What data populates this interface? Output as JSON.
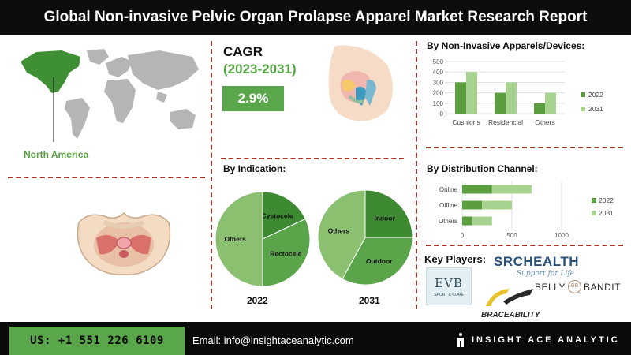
{
  "header": {
    "title": "Global Non-invasive Pelvic Organ Prolapse Apparel Market Research Report"
  },
  "region": {
    "label": "North America"
  },
  "cagr": {
    "title": "CAGR",
    "period": "(2023-2031)",
    "value": "2.9%"
  },
  "colors": {
    "accent_green": "#5aa64a",
    "series_2022": "#5a9e3f",
    "series_2031": "#a7d391",
    "divider": "#a3392b",
    "dark": "#0d0d0d"
  },
  "chart_data": [
    {
      "type": "bar",
      "title": "By Non-Invasive Apparels/Devices:",
      "categories": [
        "Cushions",
        "Residencial",
        "Others"
      ],
      "series": [
        {
          "name": "2022",
          "values": [
            300,
            200,
            100
          ]
        },
        {
          "name": "2031",
          "values": [
            400,
            300,
            200
          ]
        }
      ],
      "ylim": [
        0,
        500
      ],
      "yticks": [
        0,
        100,
        200,
        300,
        400,
        500
      ],
      "grid": true,
      "legend": "right"
    },
    {
      "type": "bar",
      "orientation": "horizontal",
      "stacked": true,
      "title": "By  Distribution Channel:",
      "categories": [
        "Online",
        "Offline",
        "Others"
      ],
      "series": [
        {
          "name": "2022",
          "values": [
            300,
            200,
            100
          ]
        },
        {
          "name": "2031",
          "values": [
            400,
            300,
            200
          ]
        }
      ],
      "xlim": [
        0,
        1000
      ],
      "xticks": [
        0,
        500,
        1000
      ],
      "grid": true,
      "legend": "right"
    },
    {
      "type": "pie",
      "title": "By Indication:",
      "subtitle": "2022",
      "slices": [
        {
          "label": "Cystocele",
          "value": 18
        },
        {
          "label": "Rectocele",
          "value": 32
        },
        {
          "label": "Others",
          "value": 50
        }
      ]
    },
    {
      "type": "pie",
      "subtitle": "2031",
      "slices": [
        {
          "label": "Indoor",
          "value": 25
        },
        {
          "label": "Outdoor",
          "value": 33
        },
        {
          "label": "Others",
          "value": 42
        }
      ]
    }
  ],
  "key_players": {
    "title": "Key Players:",
    "logos": [
      {
        "name": "EVB SPORT & CORE",
        "text": "EVB",
        "sub": "SPORT & CORE"
      },
      {
        "name": "SRC HEALTH",
        "text": "SRCHEALTH",
        "tagline": "Support for Life"
      },
      {
        "name": "BELLY BANDIT",
        "text": "BELLY",
        "text2": "BANDIT"
      },
      {
        "name": "BRACEABILITY",
        "text": "BRACEABILITY"
      }
    ]
  },
  "footer": {
    "phone": "US: +1 551 226 6109",
    "email": "Email: info@insightaceanalytic.com",
    "brand": "INSIGHT ACE ANALYTIC"
  }
}
